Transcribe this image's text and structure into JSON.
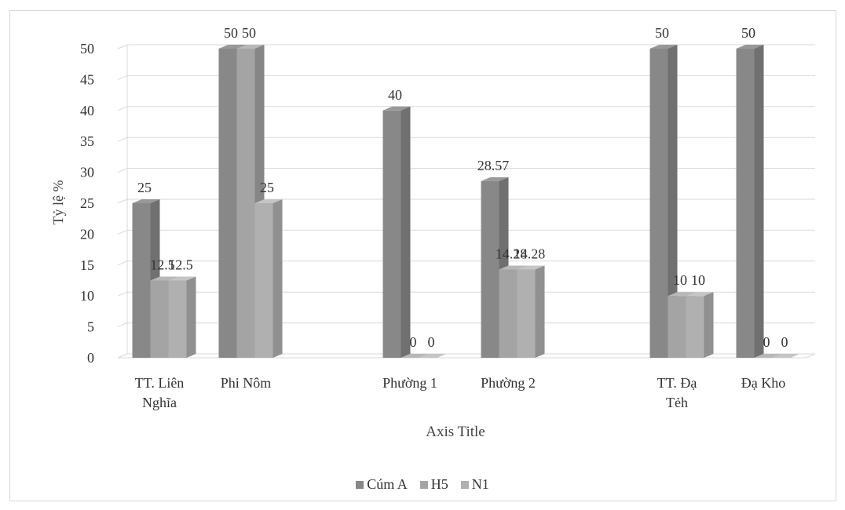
{
  "chart_data": {
    "type": "bar",
    "title": "",
    "xlabel": "Axis Title",
    "ylabel": "Tỷ lệ %",
    "ylim": [
      0,
      50
    ],
    "yticks": [
      0,
      5,
      10,
      15,
      20,
      25,
      30,
      35,
      40,
      45,
      50
    ],
    "grid": true,
    "legend_position": "bottom",
    "categories": [
      [
        "TT. Liên",
        "Nghĩa"
      ],
      [
        "Phi Nôm"
      ],
      [
        "Phường 1"
      ],
      [
        "Phường 2"
      ],
      [
        "TT. Đạ",
        "Tẻh"
      ],
      [
        "Đạ Kho"
      ]
    ],
    "series": [
      {
        "name": "Cúm A",
        "values": [
          25,
          50,
          40,
          28.57,
          50,
          50
        ]
      },
      {
        "name": "H5",
        "values": [
          12.5,
          50,
          0,
          14.28,
          10,
          0
        ]
      },
      {
        "name": "N1",
        "values": [
          12.5,
          25,
          0,
          14.28,
          10,
          0
        ]
      }
    ],
    "colors": [
      "#888888",
      "#a4a4a4",
      "#b0b0b0"
    ]
  }
}
